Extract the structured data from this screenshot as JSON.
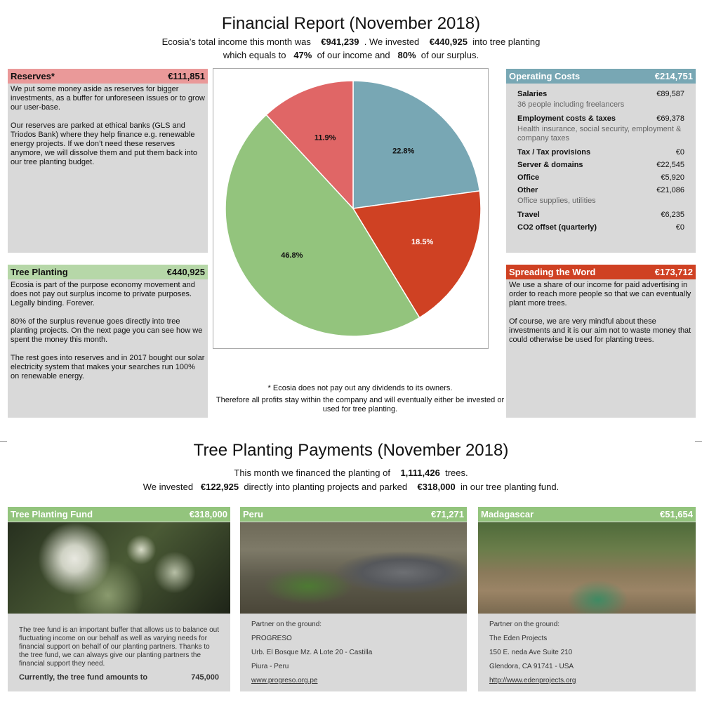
{
  "report": {
    "title": "Financial Report (November 2018)",
    "line1_a": "Ecosia’s total income this month was",
    "line1_income": "€941,239",
    "line1_b": ". We invested",
    "line1_invested": "€440,925",
    "line1_c": "into tree planting",
    "line2_a": "which equals to",
    "line2_pct_income": "47%",
    "line2_b": "of our income and",
    "line2_pct_surplus": "80%",
    "line2_c": "of our surplus."
  },
  "reserves": {
    "title": "Reserves*",
    "amount": "€111,851",
    "p1": "We put some money aside as reserves for bigger investments, as a buffer for unforeseen issues or to grow our user-base.",
    "p2": "Our reserves are parked at ethical banks (GLS and Triodos Bank) where they help finance e.g. renewable energy projects. If we don’t need these reserves anymore, we will dissolve them and put them back into our tree planting budget."
  },
  "tree_planting": {
    "title": "Tree Planting",
    "amount": "€440,925",
    "p1": "Ecosia is part of the purpose economy movement and does not pay out surplus income to private purposes. Legally binding. Forever.",
    "p2": "80% of the surplus revenue goes directly into tree planting projects. On the next page you can see how we spent the money this month.",
    "p3": "The rest goes into reserves and in 2017 bought our solar electricity system that makes your searches run 100% on renewable energy."
  },
  "operating_costs": {
    "title": "Operating Costs",
    "amount": "€214,751",
    "items": [
      {
        "label": "Salaries",
        "value": "€89,587",
        "sub": "36 people including freelancers"
      },
      {
        "label": "Employment costs & taxes",
        "value": "€69,378",
        "sub": "Health insurance, social security, employment & company taxes"
      },
      {
        "label": "Tax / Tax provisions",
        "value": "€0",
        "sub": ""
      },
      {
        "label": "Server & domains",
        "value": "€22,545",
        "sub": ""
      },
      {
        "label": "Office",
        "value": "€5,920",
        "sub": ""
      },
      {
        "label": "Other",
        "value": "€21,086",
        "sub": "Office supplies, utilities"
      },
      {
        "label": "Travel",
        "value": "€6,235",
        "sub": ""
      },
      {
        "label": "CO2 offset (quarterly)",
        "value": "€0",
        "sub": ""
      }
    ]
  },
  "spreading": {
    "title": "Spreading the Word",
    "amount": "€173,712",
    "p1": "We use a share of our income for paid advertising in order to reach more people so that we can eventually plant more trees.",
    "p2": "Of course, we are very mindful about these investments and it is our aim not to waste money that could otherwise be used for planting trees."
  },
  "footnote": {
    "line1": "* Ecosia does not pay out any dividends to its owners.",
    "line2": "Therefore all profits stay within the company and will eventually either be invested or used for tree planting."
  },
  "chart_data": {
    "type": "pie",
    "slices": [
      {
        "label": "22.8%",
        "value": 22.8,
        "color": "#78a7b4"
      },
      {
        "label": "18.5%",
        "value": 18.5,
        "color": "#cf4123"
      },
      {
        "label": "46.8%",
        "value": 46.8,
        "color": "#93c47d"
      },
      {
        "label": "11.9%",
        "value": 11.9,
        "color": "#e06666"
      }
    ]
  },
  "payments": {
    "title": "Tree Planting Payments (November 2018)",
    "line1_a": "This month we financed the planting of",
    "line1_trees": "1,111,426",
    "line1_b": "trees.",
    "line2_a": "We invested",
    "line2_direct": "€122,925",
    "line2_b": "directly into planting projects and parked",
    "line2_fund": "€318,000",
    "line2_c": "in our tree planting fund."
  },
  "fund_card": {
    "title": "Tree Planting Fund",
    "amount": "€318,000",
    "text": "The tree fund is an important buffer that allows us to balance out fluctuating income on our behalf as well as varying needs for financial support on behalf of our planting partners. Thanks to the tree fund, we can always give our planting partners the financial support they need.",
    "total_label": "Currently, the tree fund amounts to",
    "total_value": "745,000"
  },
  "peru_card": {
    "title": "Peru",
    "amount": "€71,271",
    "partner_label": "Partner on the ground:",
    "name": "PROGRESO",
    "addr1": "Urb. El Bosque Mz. A Lote 20 - Castilla",
    "addr2": "Piura - Peru",
    "link": "www.progreso.org.pe"
  },
  "mada_card": {
    "title": "Madagascar",
    "amount": "€51,654",
    "partner_label": "Partner on the ground:",
    "name": "The Eden Projects",
    "addr1": "150 E. neda Ave Suite 210",
    "addr2": "Glendora, CA 91741 - USA",
    "link": "http://www.edenprojects.org"
  },
  "colors": {
    "reserves_hdr": "#ea9999",
    "planting_hdr": "#b6d7a8",
    "operating_hdr": "#78a7b4",
    "spreading_hdr": "#cf4123",
    "card_hdr": "#93c47d"
  }
}
